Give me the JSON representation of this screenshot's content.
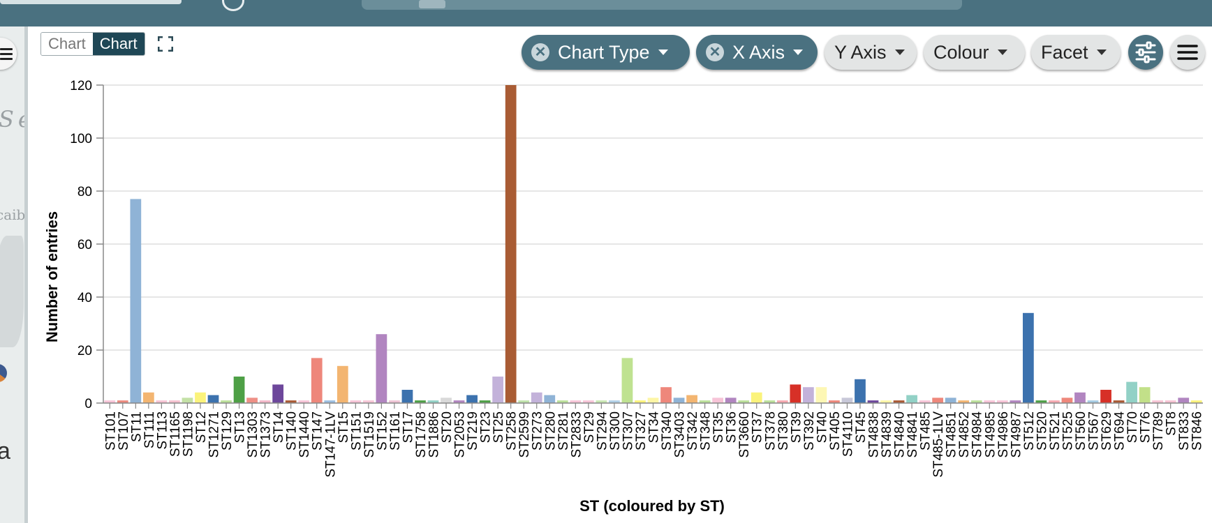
{
  "toolbar": {
    "view_toggle": {
      "option_off": "Chart",
      "option_on": "Chart"
    },
    "pills": [
      {
        "label": "Chart Type",
        "active": true
      },
      {
        "label": "X Axis",
        "active": true
      },
      {
        "label": "Y Axis",
        "active": false
      },
      {
        "label": "Colour",
        "active": false
      },
      {
        "label": "Facet",
        "active": false
      }
    ],
    "icons": {
      "expand": "expand-icon",
      "settings": "sliders-icon",
      "menu": "hamburger-menu-icon",
      "clear": "close-icon"
    }
  },
  "left_panel": {
    "map_labels": [
      "Se",
      "caib"
    ],
    "big_letter": "a"
  },
  "chart_data": {
    "type": "bar",
    "xlabel": "ST (coloured by ST)",
    "ylabel": "Number of entries",
    "ylim": [
      0,
      120
    ],
    "yticks": [
      0,
      20,
      40,
      60,
      80,
      100,
      120
    ],
    "grid": true,
    "colour_by": "category",
    "categories": [
      "ST101",
      "ST107",
      "ST11",
      "ST111",
      "ST113",
      "ST1165",
      "ST1198",
      "ST12",
      "ST1271",
      "ST129",
      "ST13",
      "ST1303",
      "ST1373",
      "ST14",
      "ST140",
      "ST1440",
      "ST147",
      "ST147-1LV",
      "ST15",
      "ST151",
      "ST1519",
      "ST152",
      "ST161",
      "ST17",
      "ST1758",
      "ST1886",
      "ST20",
      "ST2053",
      "ST219",
      "ST23",
      "ST25",
      "ST258",
      "ST2599",
      "ST273",
      "ST280",
      "ST281",
      "ST2833",
      "ST29",
      "ST294",
      "ST300",
      "ST307",
      "ST327",
      "ST34",
      "ST340",
      "ST3403",
      "ST342",
      "ST348",
      "ST35",
      "ST36",
      "ST3660",
      "ST37",
      "ST378",
      "ST380",
      "ST39",
      "ST392",
      "ST40",
      "ST405",
      "ST4110",
      "ST45",
      "ST4838",
      "ST4839",
      "ST4840",
      "ST4841",
      "ST485",
      "ST485-1LV",
      "ST4851",
      "ST4852",
      "ST4984",
      "ST4985",
      "ST4986",
      "ST4987",
      "ST512",
      "ST520",
      "ST521",
      "ST525",
      "ST560",
      "ST567",
      "ST629",
      "ST694",
      "ST70",
      "ST76",
      "ST789",
      "ST8",
      "ST833",
      "ST846"
    ],
    "values": [
      1,
      1,
      77,
      4,
      1,
      1,
      2,
      4,
      3,
      1,
      10,
      2,
      1,
      7,
      1,
      1,
      17,
      1,
      14,
      1,
      1,
      26,
      1,
      5,
      1,
      1,
      2,
      1,
      3,
      1,
      10,
      120,
      1,
      4,
      3,
      1,
      1,
      1,
      1,
      1,
      17,
      1,
      2,
      6,
      2,
      3,
      1,
      2,
      2,
      1,
      4,
      1,
      1,
      7,
      6,
      6,
      1,
      2,
      9,
      1,
      1,
      1,
      3,
      1,
      2,
      2,
      1,
      1,
      1,
      1,
      1,
      34,
      1,
      1,
      2,
      4,
      1,
      5,
      1,
      8,
      6,
      1,
      1,
      2,
      1
    ],
    "colors": [
      "#f7c4d7",
      "#ec8a7e",
      "#8fb3d6",
      "#f3b571",
      "#f6c3d3",
      "#f5c1cf",
      "#c4e1a6",
      "#fbf37b",
      "#3c72ae",
      "#bbe09a",
      "#4ea046",
      "#ee9086",
      "#f2b7c8",
      "#6d479b",
      "#aa5a34",
      "#f7c4d7",
      "#ee877b",
      "#9cbee0",
      "#f3b571",
      "#f7c4d7",
      "#f6c6d6",
      "#b185c0",
      "#eec3d4",
      "#3c72ae",
      "#4ea046",
      "#92d1c6",
      "#d9d9d9",
      "#b185c0",
      "#3c72ae",
      "#4ea046",
      "#c3b2da",
      "#a95c34",
      "#bfe2ab",
      "#c3b2da",
      "#8fb3d6",
      "#bbe09a",
      "#f7c4d7",
      "#f7c4d7",
      "#c8e6b2",
      "#b0d0e6",
      "#bfe291",
      "#fbf37b",
      "#fdf6a6",
      "#ee877b",
      "#8fb3d6",
      "#f3b571",
      "#bbe09a",
      "#f7c4d7",
      "#b185c0",
      "#bbe09a",
      "#fbf37b",
      "#bbe09a",
      "#f6a9b0",
      "#d73027",
      "#c3b2da",
      "#fdf7b4",
      "#ee877b",
      "#c8c8d8",
      "#3c72ae",
      "#6d479b",
      "#fdf6a6",
      "#aa5a34",
      "#92d1c6",
      "#f7c4d7",
      "#ee877b",
      "#8fb3d6",
      "#f3b571",
      "#bbe09a",
      "#f7c4d7",
      "#f7c4d7",
      "#b185c0",
      "#3c72ae",
      "#4ea046",
      "#f6a9b0",
      "#ee877b",
      "#b185c0",
      "#a6cce3",
      "#d73027",
      "#aa5a34",
      "#92d1c6",
      "#c2e089",
      "#f6c3d3",
      "#f6c3d3",
      "#b185c0",
      "#fbf37b"
    ]
  }
}
